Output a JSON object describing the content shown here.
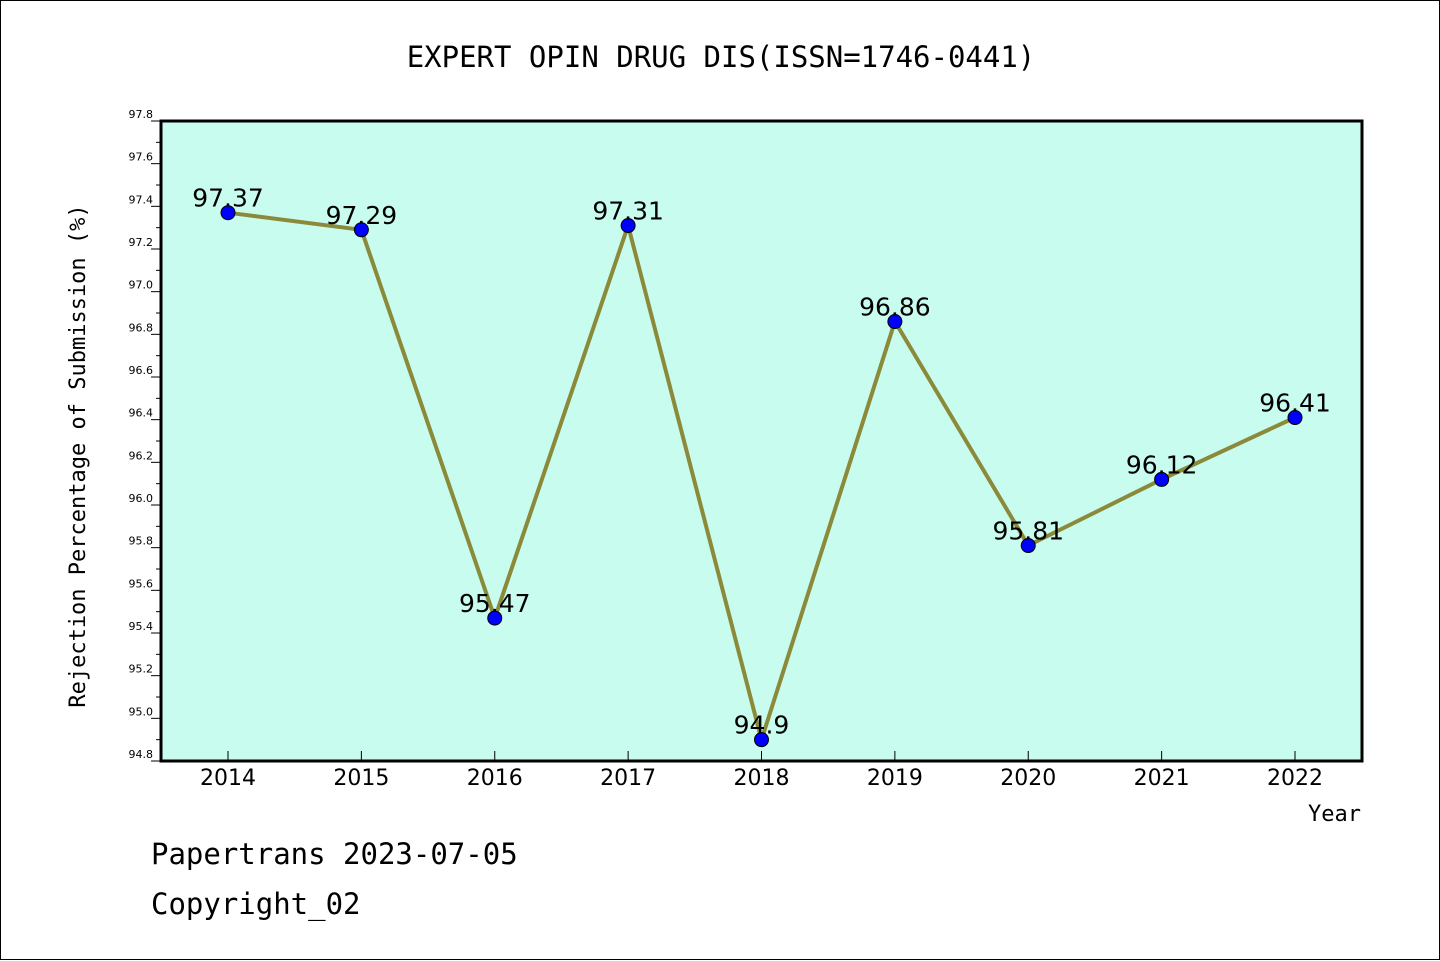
{
  "chart_data": {
    "type": "line",
    "title": "EXPERT OPIN DRUG DIS(ISSN=1746-0441)",
    "xlabel": "Year",
    "ylabel": "Rejection Percentage of Submission (%)",
    "categories": [
      "2014",
      "2015",
      "2016",
      "2017",
      "2018",
      "2019",
      "2020",
      "2021",
      "2022"
    ],
    "values": [
      97.37,
      97.29,
      95.47,
      97.31,
      94.9,
      96.86,
      95.81,
      96.12,
      96.41
    ],
    "data_labels": [
      "97.37",
      "97.29",
      "95.47",
      "97.31",
      "94.9",
      "96.86",
      "95.81",
      "96.12",
      "96.41"
    ],
    "ylim": [
      94.8,
      97.8
    ],
    "yticks": [
      "94.8",
      "95.0",
      "95.2",
      "95.4",
      "95.6",
      "95.8",
      "96.0",
      "96.2",
      "96.4",
      "96.6",
      "96.8",
      "97.0",
      "97.2",
      "97.4",
      "97.6",
      "97.8"
    ],
    "grid": false,
    "legend": "none",
    "colors": {
      "plot_background": "#c8fcee",
      "line": "#8b8a3a",
      "marker": "#0000ff"
    }
  },
  "footer": {
    "line1": "Papertrans 2023-07-05",
    "line2": "Copyright_02"
  }
}
